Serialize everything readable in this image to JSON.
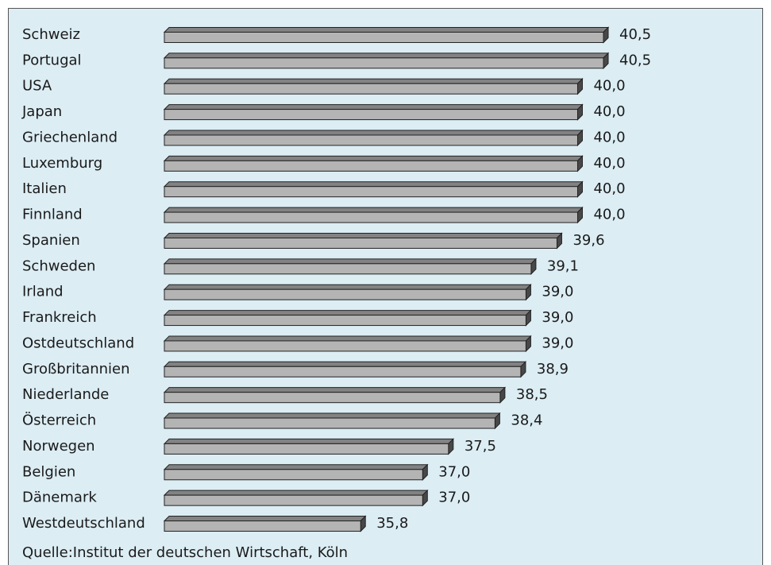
{
  "chart_data": {
    "type": "bar3d",
    "categories": [
      "Schweiz",
      "Portugal",
      "USA",
      "Japan",
      "Griechenland",
      "Luxemburg",
      "Italien",
      "Finnland",
      "Spanien",
      "Schweden",
      "Irland",
      "Frankreich",
      "Ostdeutschland",
      "Großbritannien",
      "Niederlande",
      "Österreich",
      "Norwegen",
      "Belgien",
      "Dänemark",
      "Westdeutschland"
    ],
    "values": [
      40.5,
      40.5,
      40.0,
      40.0,
      40.0,
      40.0,
      40.0,
      40.0,
      39.6,
      39.1,
      39.0,
      39.0,
      39.0,
      38.9,
      38.5,
      38.4,
      37.5,
      37.0,
      37.0,
      35.8
    ],
    "value_labels": [
      "40,5",
      "40,5",
      "40,0",
      "40,0",
      "40,0",
      "40,0",
      "40,0",
      "40,0",
      "39,6",
      "39,1",
      "39,0",
      "39,0",
      "39,0",
      "38,9",
      "38,5",
      "38,4",
      "37,5",
      "37,0",
      "37,0",
      "35,8"
    ],
    "xlim": [
      32,
      40.5
    ],
    "color": "#b4b4b4",
    "source": "Quelle:Institut der deutschen Wirtschaft, Köln"
  }
}
